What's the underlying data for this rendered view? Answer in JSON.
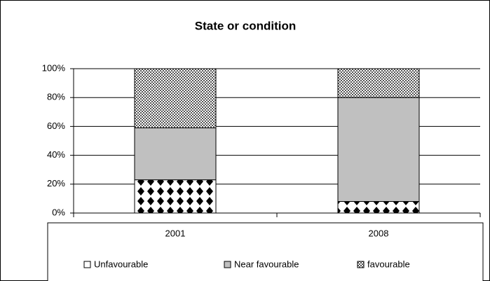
{
  "chart_data": {
    "type": "bar",
    "stacked": true,
    "title": "State or condition",
    "categories": [
      "2001",
      "2008"
    ],
    "series": [
      {
        "name": "Unfavourable",
        "color": "#000000",
        "pattern": "diamond",
        "values": [
          23,
          8
        ]
      },
      {
        "name": "Near favourable",
        "color": "#c0c0c0",
        "pattern": "solid",
        "values": [
          36,
          72
        ]
      },
      {
        "name": "favourable",
        "color": "#808080",
        "pattern": "checker",
        "values": [
          41,
          20
        ]
      }
    ],
    "ylim": [
      0,
      100
    ],
    "yticks": [
      {
        "value": 0,
        "label": "0%"
      },
      {
        "value": 20,
        "label": "20%"
      },
      {
        "value": 40,
        "label": "40%"
      },
      {
        "value": 60,
        "label": "60%"
      },
      {
        "value": 80,
        "label": "80%"
      },
      {
        "value": 100,
        "label": "100%"
      }
    ],
    "grid": true,
    "legend": "bottom"
  }
}
